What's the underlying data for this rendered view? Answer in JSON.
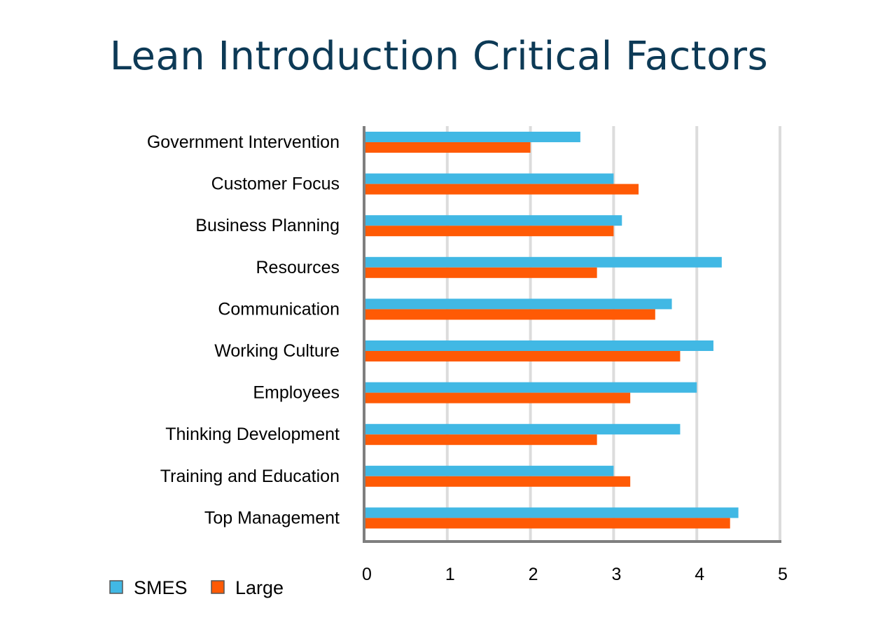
{
  "chart_data": {
    "type": "bar",
    "orientation": "horizontal",
    "title": "Lean Introduction Critical Factors",
    "categories": [
      "Government Intervention",
      "Customer Focus",
      "Business Planning",
      "Resources",
      "Communication",
      "Working Culture",
      "Employees",
      "Thinking Development",
      "Training and Education",
      "Top Management"
    ],
    "series": [
      {
        "name": "SMES",
        "color": "#41b8e4",
        "values": [
          2.6,
          3.0,
          3.1,
          4.3,
          3.7,
          4.2,
          4.0,
          3.8,
          3.0,
          4.5
        ]
      },
      {
        "name": "Large",
        "color": "#ff5a05",
        "values": [
          2.0,
          3.3,
          3.0,
          2.8,
          3.5,
          3.8,
          3.2,
          2.8,
          3.2,
          4.4
        ]
      }
    ],
    "xlim": [
      0,
      5
    ],
    "xticks": [
      "0",
      "1",
      "2",
      "3",
      "4",
      "5"
    ],
    "grid": true,
    "legend_position": "bottom-left"
  }
}
